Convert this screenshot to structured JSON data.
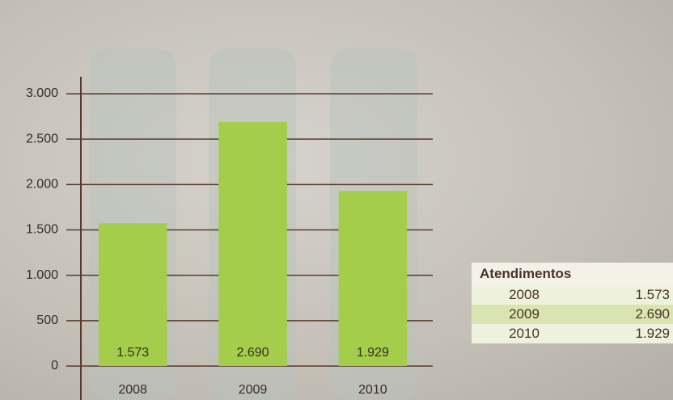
{
  "chart_data": {
    "type": "bar",
    "categories": [
      "2008",
      "2009",
      "2010"
    ],
    "values": [
      1573,
      2690,
      1929
    ],
    "value_labels": [
      "1.573",
      "2.690",
      "1.929"
    ],
    "color": "#a3cd4a",
    "ylim": [
      0,
      3000
    ],
    "yticks": [
      0,
      500,
      {
        "value": 1000,
        "label": "1.000"
      },
      {
        "value": 1500,
        "label": "1.500"
      },
      {
        "value": 2000,
        "label": "2.000"
      },
      {
        "value": 2500,
        "label": "2.500"
      },
      {
        "value": 3000,
        "label": "3.000"
      }
    ],
    "grid": true
  },
  "table": {
    "title": "Atendimentos",
    "rows": [
      [
        "2008",
        "1.573"
      ],
      [
        "2009",
        "2.690"
      ],
      [
        "2010",
        "1.929"
      ]
    ]
  }
}
